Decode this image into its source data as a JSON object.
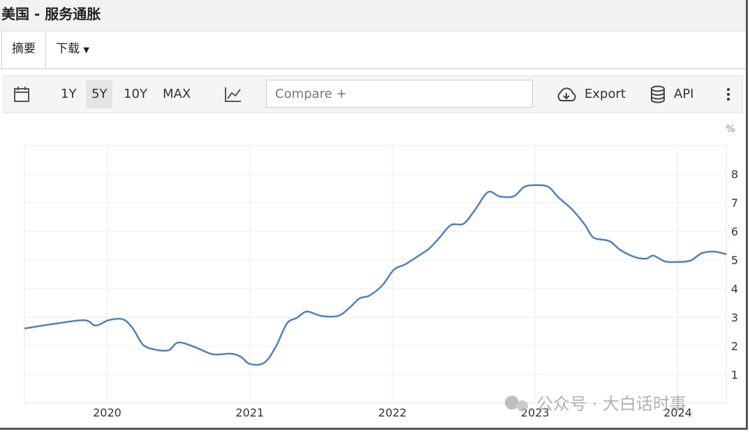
{
  "header": {
    "title": "美国 - 服务通胀"
  },
  "tabs": [
    "摘要",
    "下载"
  ],
  "toolbar": {
    "ranges": [
      "1Y",
      "5Y",
      "10Y",
      "MAX"
    ],
    "active_range": "5Y",
    "compare": "Compare +",
    "export": "Export",
    "api": "API"
  },
  "watermark": "公众号 · 大白话时事",
  "chart_data": {
    "type": "line",
    "y_unit": "%",
    "x": [
      2019.42,
      2019.64,
      2019.84,
      2019.92,
      2020.01,
      2020.11,
      2020.18,
      2020.25,
      2020.33,
      2020.43,
      2020.5,
      2020.62,
      2020.74,
      2020.87,
      2020.94,
      2021.0,
      2021.1,
      2021.18,
      2021.26,
      2021.33,
      2021.4,
      2021.5,
      2021.62,
      2021.7,
      2021.77,
      2021.84,
      2021.93,
      2022.01,
      2022.09,
      2022.19,
      2022.26,
      2022.33,
      2022.41,
      2022.5,
      2022.58,
      2022.67,
      2022.75,
      2022.85,
      2022.92,
      2022.99,
      2023.09,
      2023.16,
      2023.26,
      2023.35,
      2023.41,
      2023.52,
      2023.6,
      2023.7,
      2023.78,
      2023.83,
      2023.91,
      2024.0,
      2024.09,
      2024.17,
      2024.26,
      2024.34
    ],
    "series": [
      {
        "color": "#4f81bd",
        "values": [
          2.61,
          2.78,
          2.9,
          2.71,
          2.9,
          2.93,
          2.61,
          2.05,
          1.88,
          1.85,
          2.12,
          1.95,
          1.71,
          1.73,
          1.61,
          1.37,
          1.41,
          1.95,
          2.78,
          2.98,
          3.2,
          3.05,
          3.05,
          3.34,
          3.66,
          3.76,
          4.12,
          4.66,
          4.85,
          5.17,
          5.41,
          5.78,
          6.22,
          6.27,
          6.76,
          7.37,
          7.22,
          7.22,
          7.54,
          7.61,
          7.56,
          7.2,
          6.76,
          6.22,
          5.78,
          5.66,
          5.34,
          5.1,
          5.05,
          5.15,
          4.95,
          4.93,
          4.98,
          5.24,
          5.29,
          5.2
        ]
      }
    ],
    "xlim": [
      2019.42,
      2024.34
    ],
    "xticks": [
      2020,
      2021,
      2022,
      2023,
      2024
    ],
    "ylim": [
      0,
      9
    ],
    "yticks": [
      1,
      2,
      3,
      4,
      5,
      6,
      7,
      8
    ],
    "grid": true
  }
}
